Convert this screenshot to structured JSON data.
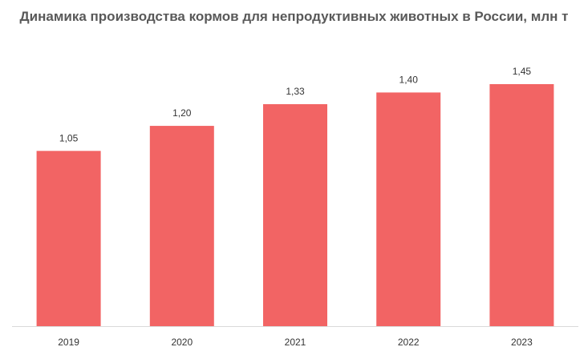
{
  "chart_data": {
    "type": "bar",
    "title": "Динамика производства кормов для непродуктивных животных в России, млн т",
    "categories": [
      "2019",
      "2020",
      "2021",
      "2022",
      "2023"
    ],
    "values": [
      1.05,
      1.2,
      1.33,
      1.4,
      1.45
    ],
    "value_labels": [
      "1,05",
      "1,20",
      "1,33",
      "1,40",
      "1,45"
    ],
    "xlabel": "",
    "ylabel": "",
    "ylim": [
      0,
      1.45
    ],
    "grid": false,
    "legend": "none",
    "bar_color": "#F26464",
    "axis_color": "#D9D9D9"
  }
}
